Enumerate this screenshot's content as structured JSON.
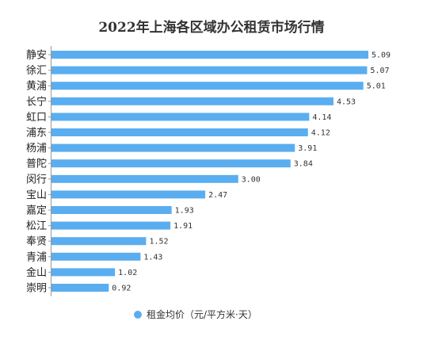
{
  "chart_data": {
    "type": "bar",
    "orientation": "horizontal",
    "title": "2022年上海各区域办公租赁市场行情",
    "categories": [
      "静安",
      "徐汇",
      "黄浦",
      "长宁",
      "虹口",
      "浦东",
      "杨浦",
      "普陀",
      "闵行",
      "宝山",
      "嘉定",
      "松江",
      "奉贤",
      "青浦",
      "金山",
      "崇明"
    ],
    "series": [
      {
        "name": "租金均价（元/平方米·天）",
        "color": "#5aaef0",
        "values": [
          5.09,
          5.07,
          5.01,
          4.53,
          4.14,
          4.12,
          3.91,
          3.84,
          3.0,
          2.47,
          1.93,
          1.91,
          1.52,
          1.43,
          1.02,
          0.92
        ]
      }
    ],
    "value_labels": [
      "5.09",
      "5.07",
      "5.01",
      "4.53",
      "4.14",
      "4.12",
      "3.91",
      "3.84",
      "3.00",
      "2.47",
      "1.93",
      "1.91",
      "1.52",
      "1.43",
      "1.02",
      "0.92"
    ],
    "xlim": [
      0,
      5.09
    ],
    "grid": false,
    "legend_position": "bottom"
  }
}
